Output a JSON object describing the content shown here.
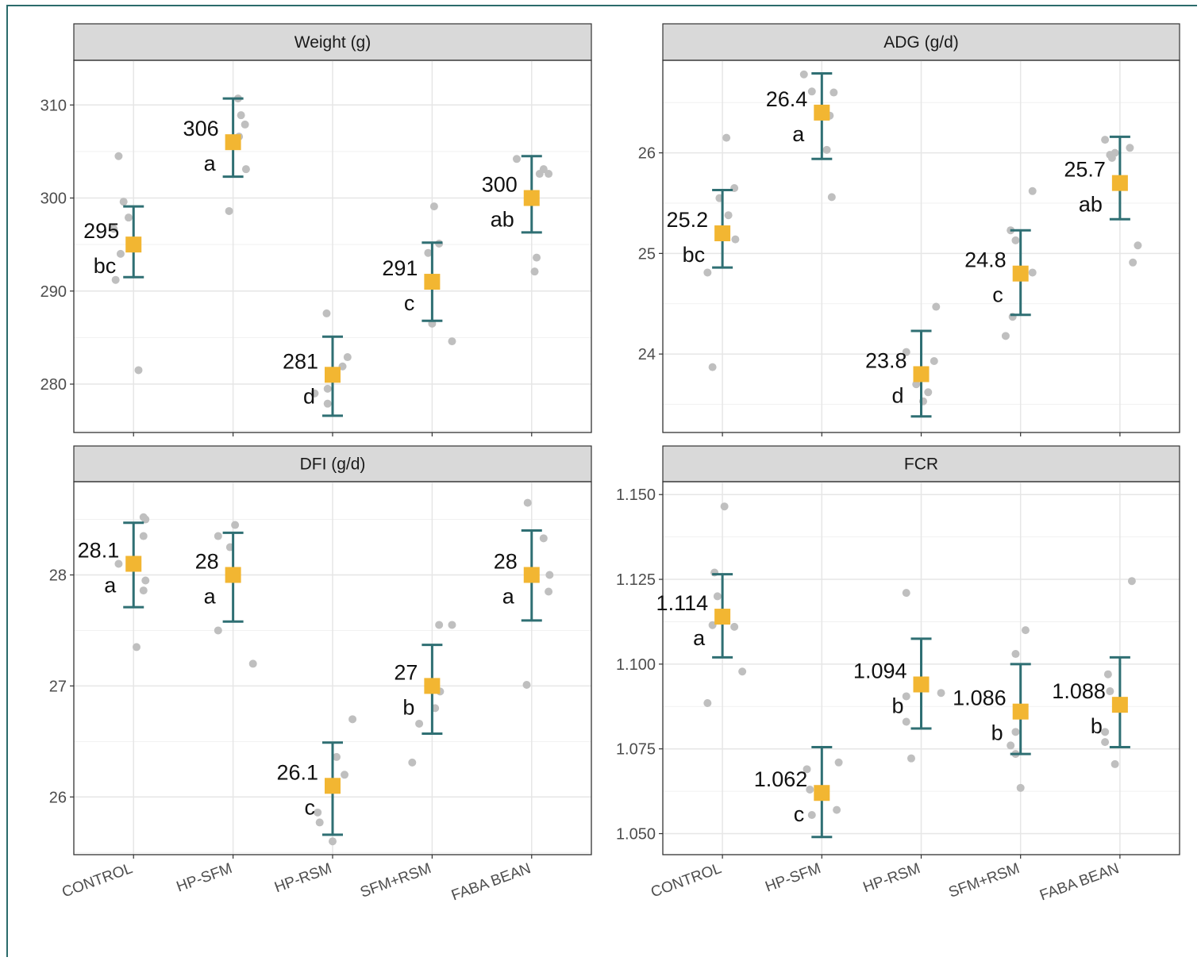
{
  "chart_data": [
    {
      "type": "scatter",
      "title": "Weight (g)",
      "categories": [
        "CONTROL",
        "HP-SFM",
        "HP-RSM",
        "SFM+RSM",
        "FABA BEAN"
      ],
      "show_x_ticks": false,
      "ylim": [
        274.8,
        314.8
      ],
      "yticks": [
        280,
        290,
        300,
        310
      ],
      "ytick_labels": [
        "280",
        "290",
        "300",
        "310"
      ],
      "means": [
        295,
        306,
        281,
        291,
        300
      ],
      "mean_labels": [
        "295",
        "306",
        "281",
        "291",
        "300"
      ],
      "errors_low": [
        291.5,
        302.3,
        276.6,
        286.8,
        296.3
      ],
      "errors_high": [
        299.1,
        310.7,
        285.1,
        295.2,
        304.5
      ],
      "group_letters": [
        "bc",
        "a",
        "d",
        "c",
        "ab"
      ],
      "raw_points": [
        [
          [
            -0.15,
            304.5
          ],
          [
            -0.1,
            299.6
          ],
          [
            -0.2,
            296.7
          ],
          [
            -0.13,
            294.0
          ],
          [
            -0.18,
            291.2
          ],
          [
            0.05,
            281.5
          ],
          [
            -0.05,
            297.9
          ]
        ],
        [
          [
            0.05,
            310.7
          ],
          [
            0.08,
            308.9
          ],
          [
            0.12,
            307.9
          ],
          [
            0.06,
            306.6
          ],
          [
            0.13,
            303.1
          ],
          [
            -0.04,
            298.6
          ]
        ],
        [
          [
            -0.18,
            279.0
          ],
          [
            -0.05,
            279.5
          ],
          [
            -0.05,
            277.9
          ],
          [
            0.1,
            281.9
          ],
          [
            0.15,
            282.9
          ],
          [
            -0.06,
            287.6
          ]
        ],
        [
          [
            0.02,
            299.1
          ],
          [
            0.07,
            295.1
          ],
          [
            0.0,
            286.5
          ],
          [
            0.2,
            284.6
          ],
          [
            -0.04,
            294.1
          ]
        ],
        [
          [
            -0.15,
            304.2
          ],
          [
            0.12,
            303.1
          ],
          [
            0.17,
            302.6
          ],
          [
            0.08,
            302.6
          ],
          [
            0.05,
            293.6
          ],
          [
            0.03,
            292.1
          ]
        ]
      ]
    },
    {
      "type": "scatter",
      "title": "ADG (g/d)",
      "categories": [
        "CONTROL",
        "HP-SFM",
        "HP-RSM",
        "SFM+RSM",
        "FABA BEAN"
      ],
      "show_x_ticks": false,
      "ylim": [
        23.22,
        26.92
      ],
      "yticks": [
        24,
        25,
        26
      ],
      "ytick_labels": [
        "24",
        "25",
        "26"
      ],
      "means": [
        25.2,
        26.4,
        23.8,
        24.8,
        25.7
      ],
      "mean_labels": [
        "25.2",
        "26.4",
        "23.8",
        "24.8",
        "25.7"
      ],
      "errors_low": [
        24.86,
        25.94,
        23.38,
        24.39,
        25.34
      ],
      "errors_high": [
        25.63,
        26.79,
        24.23,
        25.23,
        26.16
      ],
      "group_letters": [
        "bc",
        "a",
        "d",
        "c",
        "ab"
      ],
      "raw_points": [
        [
          [
            0.04,
            26.15
          ],
          [
            0.12,
            25.65
          ],
          [
            0.06,
            25.38
          ],
          [
            0.13,
            25.14
          ],
          [
            -0.15,
            24.81
          ],
          [
            -0.1,
            23.87
          ],
          [
            -0.03,
            25.55
          ]
        ],
        [
          [
            -0.18,
            26.78
          ],
          [
            -0.1,
            26.61
          ],
          [
            0.12,
            26.6
          ],
          [
            0.08,
            26.37
          ],
          [
            0.05,
            26.03
          ],
          [
            0.1,
            25.56
          ]
        ],
        [
          [
            -0.15,
            24.02
          ],
          [
            0.15,
            24.47
          ],
          [
            0.13,
            23.93
          ],
          [
            0.07,
            23.62
          ],
          [
            0.02,
            23.53
          ],
          [
            -0.05,
            23.7
          ]
        ],
        [
          [
            -0.1,
            25.23
          ],
          [
            -0.05,
            25.13
          ],
          [
            0.12,
            25.62
          ],
          [
            0.12,
            24.81
          ],
          [
            -0.15,
            24.18
          ],
          [
            -0.08,
            24.37
          ]
        ],
        [
          [
            -0.15,
            26.13
          ],
          [
            -0.1,
            25.98
          ],
          [
            -0.05,
            26.0
          ],
          [
            -0.08,
            25.95
          ],
          [
            0.1,
            26.05
          ],
          [
            0.18,
            25.08
          ],
          [
            0.13,
            24.91
          ]
        ]
      ]
    },
    {
      "type": "scatter",
      "title": "DFI (g/d)",
      "categories": [
        "CONTROL",
        "HP-SFM",
        "HP-RSM",
        "SFM+RSM",
        "FABA BEAN"
      ],
      "show_x_ticks": true,
      "x_tick_labels": [
        "CONTROL",
        "HP-SFM",
        "HP-RSM",
        "SFM+RSM",
        "FABA BEAN"
      ],
      "ylim": [
        25.48,
        28.84
      ],
      "yticks": [
        26,
        27,
        28
      ],
      "ytick_labels": [
        "26",
        "27",
        "28"
      ],
      "means": [
        28.1,
        28.0,
        26.1,
        27.0,
        28.0
      ],
      "mean_labels": [
        "28.1",
        "28",
        "26.1",
        "27",
        "28"
      ],
      "errors_low": [
        27.71,
        27.58,
        25.66,
        26.57,
        27.59
      ],
      "errors_high": [
        28.47,
        28.38,
        26.49,
        27.37,
        28.4
      ],
      "group_letters": [
        "a",
        "a",
        "c",
        "b",
        "a"
      ],
      "raw_points": [
        [
          [
            0.1,
            28.52
          ],
          [
            0.12,
            28.5
          ],
          [
            0.1,
            28.35
          ],
          [
            0.12,
            27.95
          ],
          [
            0.1,
            27.86
          ],
          [
            0.03,
            27.35
          ],
          [
            -0.15,
            28.1
          ]
        ],
        [
          [
            -0.15,
            28.35
          ],
          [
            -0.03,
            28.25
          ],
          [
            0.02,
            28.45
          ],
          [
            -0.15,
            27.5
          ],
          [
            0.2,
            27.2
          ]
        ],
        [
          [
            0.04,
            26.36
          ],
          [
            0.12,
            26.2
          ],
          [
            -0.15,
            25.86
          ],
          [
            -0.13,
            25.77
          ],
          [
            0.0,
            25.6
          ],
          [
            0.2,
            26.7
          ]
        ],
        [
          [
            0.07,
            27.55
          ],
          [
            0.2,
            27.55
          ],
          [
            0.08,
            26.95
          ],
          [
            0.03,
            26.8
          ],
          [
            -0.13,
            26.66
          ],
          [
            -0.2,
            26.31
          ]
        ],
        [
          [
            -0.04,
            28.65
          ],
          [
            0.12,
            28.33
          ],
          [
            0.18,
            28.0
          ],
          [
            0.17,
            27.85
          ],
          [
            -0.05,
            27.01
          ]
        ]
      ]
    },
    {
      "type": "scatter",
      "title": "FCR",
      "categories": [
        "CONTROL",
        "HP-SFM",
        "HP-RSM",
        "SFM+RSM",
        "FABA BEAN"
      ],
      "show_x_ticks": true,
      "x_tick_labels": [
        "CONTROL",
        "HP-SFM",
        "HP-RSM",
        "SFM+RSM",
        "FABA BEAN"
      ],
      "ylim": [
        1.0438,
        1.1538
      ],
      "yticks": [
        1.05,
        1.075,
        1.1,
        1.125,
        1.15
      ],
      "ytick_labels": [
        "1.050",
        "1.075",
        "1.100",
        "1.125",
        "1.150"
      ],
      "means": [
        1.114,
        1.062,
        1.094,
        1.086,
        1.088
      ],
      "mean_labels": [
        "1.114",
        "1.062",
        "1.094",
        "1.086",
        "1.088"
      ],
      "errors_low": [
        1.102,
        1.049,
        1.081,
        1.0735,
        1.0755
      ],
      "errors_high": [
        1.1265,
        1.0755,
        1.1075,
        1.1,
        1.102
      ],
      "group_letters": [
        "a",
        "c",
        "b",
        "b",
        "b"
      ],
      "raw_points": [
        [
          [
            0.02,
            1.1465
          ],
          [
            -0.08,
            1.127
          ],
          [
            -0.1,
            1.1115
          ],
          [
            0.12,
            1.111
          ],
          [
            0.2,
            1.0978
          ],
          [
            -0.15,
            1.0885
          ],
          [
            -0.05,
            1.12
          ]
        ],
        [
          [
            -0.15,
            1.069
          ],
          [
            0.17,
            1.071
          ],
          [
            -0.12,
            1.063
          ],
          [
            0.15,
            1.057
          ],
          [
            -0.1,
            1.0555
          ]
        ],
        [
          [
            -0.15,
            1.121
          ],
          [
            -0.15,
            1.0905
          ],
          [
            -0.15,
            1.083
          ],
          [
            0.2,
            1.0915
          ],
          [
            -0.1,
            1.0722
          ]
        ],
        [
          [
            -0.05,
            1.103
          ],
          [
            0.05,
            1.11
          ],
          [
            -0.05,
            1.08
          ],
          [
            -0.05,
            1.0735
          ],
          [
            0.0,
            1.0635
          ],
          [
            -0.1,
            1.076
          ]
        ],
        [
          [
            -0.12,
            1.097
          ],
          [
            -0.1,
            1.092
          ],
          [
            -0.15,
            1.08
          ],
          [
            -0.15,
            1.077
          ],
          [
            -0.05,
            1.0705
          ],
          [
            0.12,
            1.1245
          ]
        ]
      ]
    }
  ]
}
